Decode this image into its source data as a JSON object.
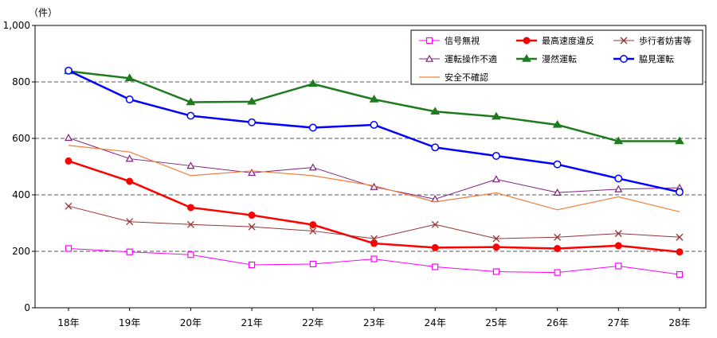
{
  "chart_data": {
    "type": "line",
    "y_unit_label": "（件）",
    "categories": [
      "18年",
      "19年",
      "20年",
      "21年",
      "22年",
      "23年",
      "24年",
      "25年",
      "26年",
      "27年",
      "28年"
    ],
    "ylim": [
      0,
      1000
    ],
    "yticks": [
      0,
      200,
      400,
      600,
      800,
      1000
    ],
    "ytick_labels": [
      "0",
      "200",
      "400",
      "600",
      "800",
      "1,000"
    ],
    "grid": "horizontal dashed at 200, 400, 600, 800",
    "legend_position": "top-right",
    "series": [
      {
        "name": "信号無視",
        "color": "#ff00ff",
        "marker": "square-open",
        "width": 1,
        "values": [
          210,
          198,
          188,
          152,
          155,
          173,
          145,
          128,
          125,
          148,
          118
        ]
      },
      {
        "name": "最高速度違反",
        "color": "#ff0000",
        "marker": "circle-filled",
        "width": 2.5,
        "values": [
          520,
          448,
          355,
          328,
          294,
          228,
          213,
          215,
          210,
          220,
          198
        ]
      },
      {
        "name": "歩行者妨害等",
        "color": "#993333",
        "marker": "x",
        "width": 1,
        "values": [
          360,
          305,
          295,
          287,
          272,
          245,
          295,
          245,
          250,
          263,
          250
        ]
      },
      {
        "name": "運転操作不適",
        "color": "#7f1f7f",
        "marker": "triangle-open",
        "width": 1,
        "values": [
          602,
          528,
          503,
          478,
          497,
          428,
          385,
          455,
          408,
          420,
          425
        ]
      },
      {
        "name": "漫然運転",
        "color": "#1e7b1e",
        "marker": "triangle-filled",
        "width": 2.5,
        "values": [
          838,
          813,
          728,
          730,
          793,
          738,
          695,
          677,
          648,
          590,
          590
        ]
      },
      {
        "name": "脇見運転",
        "color": "#0000ff",
        "marker": "circle-open",
        "width": 2.5,
        "values": [
          840,
          738,
          680,
          657,
          638,
          648,
          568,
          538,
          508,
          458,
          410
        ]
      },
      {
        "name": "安全不確認",
        "color": "#f07f3c",
        "marker": "none",
        "width": 1.2,
        "values": [
          575,
          552,
          468,
          485,
          468,
          432,
          375,
          407,
          347,
          393,
          340
        ]
      }
    ]
  }
}
